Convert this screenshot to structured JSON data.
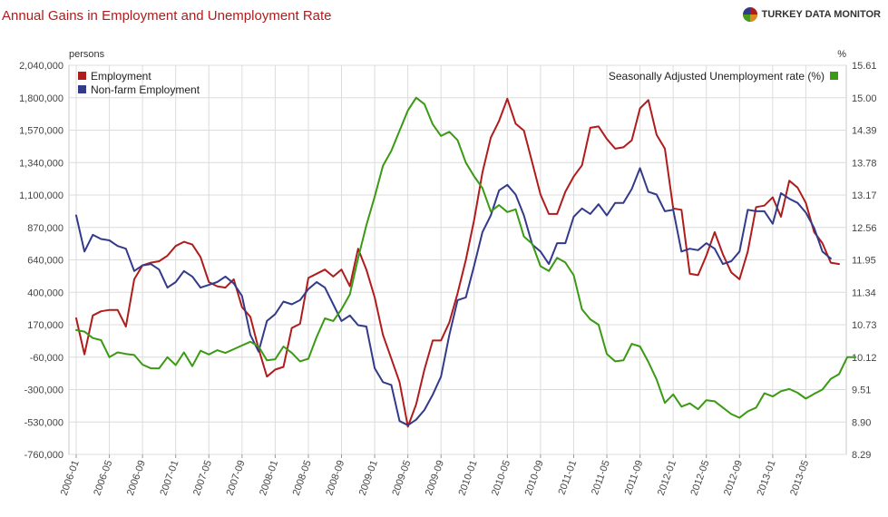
{
  "header": {
    "title": "Annual Gains in Employment and Unemployment Rate",
    "brand": "TURKEY DATA MONITOR",
    "brand_colors": [
      "#b01c1c",
      "#2f3a8f",
      "#4a9a1a",
      "#e08a1e"
    ]
  },
  "colors": {
    "employment": "#b01c1c",
    "nonfarm": "#333a8a",
    "unemployment": "#3a9a14",
    "grid": "#dcdcdc",
    "title": "#b01c1c"
  },
  "chart_data": {
    "type": "line",
    "title": "Annual Gains in Employment and Unemployment Rate",
    "y_left_label": "persons",
    "y_right_label": "%",
    "y_left_range": [
      -760000,
      2040000
    ],
    "y_right_range": [
      8.29,
      15.61
    ],
    "y_left_ticks": [
      "2,040,000",
      "1,800,000",
      "1,570,000",
      "1,340,000",
      "1,100,000",
      "870,000",
      "640,000",
      "400,000",
      "170,000",
      "-60,000",
      "-300,000",
      "-530,000",
      "-760,000"
    ],
    "y_right_ticks": [
      "15.61",
      "15.00",
      "14.39",
      "13.78",
      "13.17",
      "12.56",
      "11.95",
      "11.34",
      "10.73",
      "10.12",
      "9.51",
      "8.90",
      "8.29"
    ],
    "x_tick_labels": [
      "2006-01",
      "2006-05",
      "2006-09",
      "2007-01",
      "2007-05",
      "2007-09",
      "2008-01",
      "2008-05",
      "2008-09",
      "2009-01",
      "2009-05",
      "2009-09",
      "2010-01",
      "2010-05",
      "2010-09",
      "2011-01",
      "2011-05",
      "2011-09",
      "2012-01",
      "2012-05",
      "2012-09",
      "2013-01",
      "2013-05"
    ],
    "x_start": "2006-01",
    "grid": true,
    "legend_left": "top-left",
    "legend_right": "top-right",
    "series": [
      {
        "name": "Employment",
        "axis": "left",
        "values": [
          220000,
          -40000,
          240000,
          270000,
          280000,
          280000,
          160000,
          500000,
          600000,
          620000,
          630000,
          670000,
          740000,
          770000,
          750000,
          660000,
          480000,
          450000,
          440000,
          500000,
          300000,
          230000,
          0,
          -200000,
          -150000,
          -130000,
          150000,
          180000,
          510000,
          540000,
          570000,
          520000,
          570000,
          450000,
          720000,
          570000,
          370000,
          100000,
          -70000,
          -240000,
          -560000,
          -400000,
          -150000,
          60000,
          60000,
          190000,
          400000,
          640000,
          930000,
          1270000,
          1520000,
          1640000,
          1800000,
          1620000,
          1570000,
          1340000,
          1110000,
          970000,
          970000,
          1130000,
          1240000,
          1320000,
          1590000,
          1600000,
          1510000,
          1440000,
          1450000,
          1500000,
          1730000,
          1790000,
          1540000,
          1440000,
          1010000,
          1000000,
          540000,
          530000,
          670000,
          840000,
          680000,
          550000,
          500000,
          700000,
          1020000,
          1030000,
          1090000,
          950000,
          1210000,
          1160000,
          1050000,
          840000,
          760000,
          620000,
          610000
        ]
      },
      {
        "name": "Non-farm Employment",
        "axis": "left",
        "values": [
          960000,
          700000,
          820000,
          790000,
          780000,
          740000,
          720000,
          560000,
          600000,
          610000,
          570000,
          440000,
          480000,
          560000,
          520000,
          440000,
          460000,
          480000,
          520000,
          470000,
          380000,
          100000,
          -20000,
          200000,
          250000,
          340000,
          320000,
          350000,
          430000,
          480000,
          440000,
          320000,
          200000,
          240000,
          170000,
          160000,
          -140000,
          -240000,
          -260000,
          -520000,
          -550000,
          -510000,
          -440000,
          -330000,
          -200000,
          100000,
          350000,
          370000,
          600000,
          840000,
          960000,
          1140000,
          1180000,
          1110000,
          960000,
          750000,
          700000,
          610000,
          760000,
          760000,
          950000,
          1010000,
          970000,
          1040000,
          960000,
          1050000,
          1050000,
          1150000,
          1300000,
          1130000,
          1110000,
          990000,
          1000000,
          700000,
          720000,
          710000,
          760000,
          720000,
          610000,
          630000,
          700000,
          1000000,
          990000,
          990000,
          900000,
          1120000,
          1080000,
          1050000,
          980000,
          870000,
          700000,
          650000
        ]
      },
      {
        "name": "Seasonally Adjusted Unemployment rate (%)",
        "axis": "right",
        "values": [
          10.63,
          10.6,
          10.48,
          10.44,
          10.12,
          10.21,
          10.18,
          10.16,
          9.98,
          9.91,
          9.91,
          10.12,
          9.97,
          10.21,
          9.95,
          10.24,
          10.17,
          10.25,
          10.2,
          10.27,
          10.34,
          10.41,
          10.32,
          10.06,
          10.08,
          10.32,
          10.2,
          10.04,
          10.09,
          10.5,
          10.85,
          10.8,
          11.02,
          11.3,
          11.98,
          12.6,
          13.14,
          13.72,
          14.0,
          14.38,
          14.76,
          15.0,
          14.88,
          14.5,
          14.28,
          14.36,
          14.2,
          13.78,
          13.52,
          13.3,
          12.86,
          12.98,
          12.85,
          12.9,
          12.39,
          12.25,
          11.83,
          11.74,
          11.99,
          11.9,
          11.66,
          11.02,
          10.83,
          10.73,
          10.18,
          10.04,
          10.06,
          10.37,
          10.32,
          10.03,
          9.7,
          9.26,
          9.42,
          9.19,
          9.25,
          9.14,
          9.31,
          9.29,
          9.17,
          9.05,
          8.98,
          9.1,
          9.17,
          9.44,
          9.38,
          9.48,
          9.52,
          9.45,
          9.34,
          9.43,
          9.51,
          9.71,
          9.8,
          10.12,
          10.12
        ]
      }
    ]
  }
}
